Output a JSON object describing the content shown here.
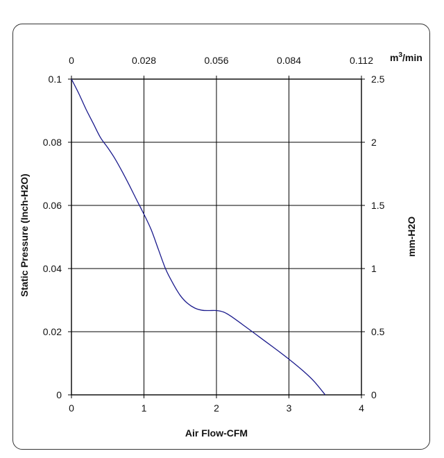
{
  "chart_data": {
    "type": "line",
    "xlabel": "Air Flow-CFM",
    "ylabel": "Static Pressure (Inch-H2O)",
    "x2label_main": "m",
    "x2label_sup": "3",
    "x2label_tail": "/min",
    "y2label": "mm-H2O",
    "xlim": [
      0,
      4
    ],
    "ylim": [
      0,
      0.1
    ],
    "x2lim": [
      0,
      0.112
    ],
    "y2lim": [
      0,
      2.5
    ],
    "x_ticks": [
      "0",
      "1",
      "2",
      "3",
      "4"
    ],
    "y_ticks": [
      "0",
      "0.02",
      "0.04",
      "0.06",
      "0.08",
      "0.1"
    ],
    "x2_ticks": [
      "0",
      "0.028",
      "0.056",
      "0.084",
      "0.112"
    ],
    "y2_ticks": [
      "0",
      "0.5",
      "1",
      "1.5",
      "2",
      "2.5"
    ],
    "grid": true,
    "line_color": "#1a1a8c",
    "series": [
      {
        "x": [
          0,
          0.1,
          0.2,
          0.3,
          0.4,
          0.5,
          0.6,
          0.7,
          0.8,
          0.9,
          1.0,
          1.1,
          1.2,
          1.3,
          1.4,
          1.5,
          1.6,
          1.7,
          1.8,
          1.9,
          2.0,
          2.1,
          2.2,
          2.4,
          2.6,
          2.8,
          3.0,
          3.2,
          3.35,
          3.5
        ],
        "y": [
          0.1,
          0.0955,
          0.0905,
          0.086,
          0.0815,
          0.0783,
          0.0748,
          0.0707,
          0.0663,
          0.0617,
          0.0572,
          0.0523,
          0.046,
          0.0398,
          0.0353,
          0.0315,
          0.029,
          0.0275,
          0.0268,
          0.0267,
          0.0267,
          0.0262,
          0.0249,
          0.0216,
          0.0182,
          0.0148,
          0.0113,
          0.0075,
          0.0042,
          0.0
        ]
      }
    ]
  }
}
